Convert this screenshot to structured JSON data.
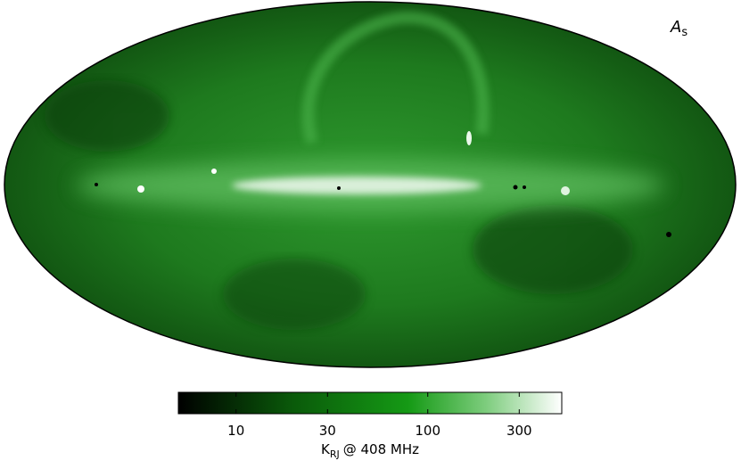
{
  "map": {
    "title": "A",
    "title_subscript": "s"
  },
  "colorbar": {
    "scale": "log",
    "lim": [
      5,
      500
    ],
    "ticks": [
      10,
      30,
      100,
      300
    ],
    "label": "K",
    "label_subscript": "RJ",
    "label_rest": "@ 408 MHz"
  }
}
